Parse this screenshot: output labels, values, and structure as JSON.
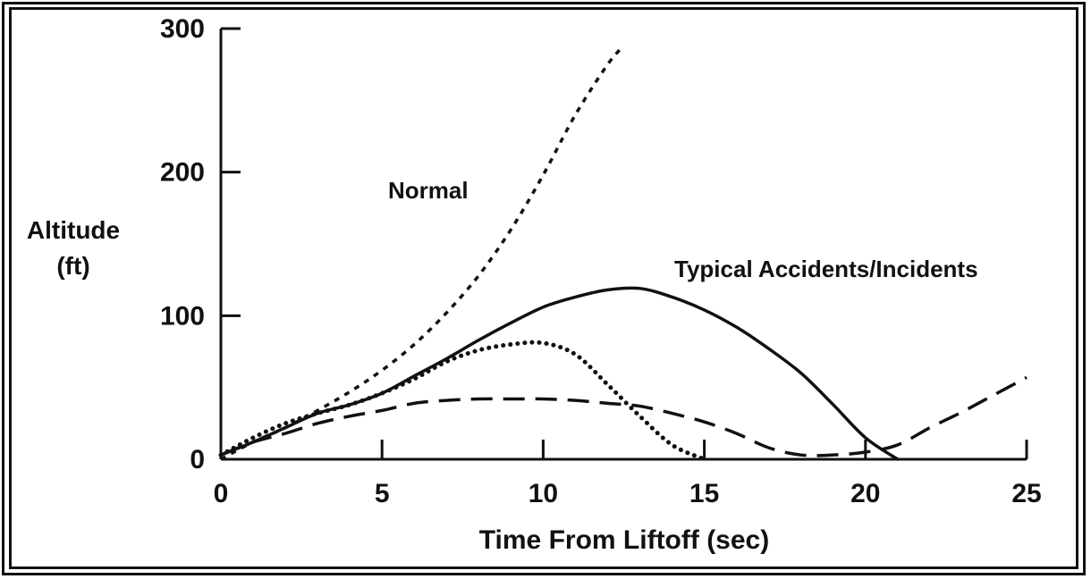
{
  "chart_data": {
    "type": "line",
    "title": "",
    "xlabel": "Time From Liftoff (sec)",
    "ylabel_lines": [
      "Altitude",
      "(ft)"
    ],
    "xlim": [
      0,
      25
    ],
    "ylim": [
      0,
      300
    ],
    "xticks": [
      0,
      5,
      10,
      15,
      20,
      25
    ],
    "yticks": [
      0,
      100,
      200,
      300
    ],
    "grid": false,
    "annotations": [
      {
        "text": "Normal",
        "near_series": "normal"
      },
      {
        "text": "Typical Accidents/Incidents",
        "near_series": "accident-solid"
      }
    ],
    "series": [
      {
        "id": "normal",
        "style": "dashed-short",
        "x": [
          0,
          1,
          2,
          3,
          4,
          5,
          6,
          7,
          8,
          9,
          10,
          11,
          12,
          12.5
        ],
        "y": [
          0,
          12,
          22,
          34,
          47,
          62,
          80,
          102,
          128,
          160,
          198,
          240,
          275,
          288
        ]
      },
      {
        "id": "accident-solid",
        "style": "solid",
        "x": [
          0,
          1,
          2,
          3,
          4,
          5,
          6,
          7,
          8,
          9,
          10,
          11,
          12,
          13,
          14,
          15,
          16,
          17,
          18,
          19,
          20,
          21
        ],
        "y": [
          3,
          12,
          22,
          32,
          38,
          46,
          58,
          70,
          83,
          95,
          106,
          113,
          118,
          119,
          113,
          104,
          92,
          77,
          60,
          38,
          15,
          0
        ]
      },
      {
        "id": "accident-dotted",
        "style": "dotted",
        "x": [
          0,
          1,
          2,
          3,
          4,
          5,
          6,
          7,
          8,
          9,
          10,
          11,
          12,
          13,
          14,
          15
        ],
        "y": [
          3,
          15,
          25,
          32,
          38,
          46,
          56,
          68,
          76,
          80,
          81,
          73,
          52,
          30,
          10,
          0
        ]
      },
      {
        "id": "accident-long-dash",
        "style": "dashed-long",
        "x": [
          0,
          1,
          2,
          3,
          4,
          5,
          6,
          7,
          8,
          9,
          10,
          11,
          12,
          13,
          14,
          15,
          16,
          17,
          18,
          19,
          20,
          21,
          22,
          23,
          24,
          25
        ],
        "y": [
          3,
          12,
          18,
          25,
          30,
          34,
          39,
          41,
          42,
          42,
          42,
          41,
          39,
          37,
          32,
          26,
          18,
          8,
          3,
          3,
          5,
          10,
          22,
          33,
          45,
          57
        ]
      }
    ]
  }
}
